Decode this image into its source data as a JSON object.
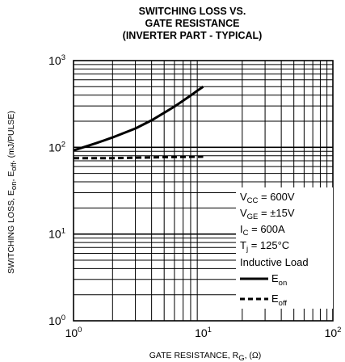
{
  "chart_data": {
    "type": "line",
    "title": [
      "SWITCHING LOSS VS.",
      "GATE RESISTANCE",
      "(INVERTER PART - TYPICAL)"
    ],
    "xlabel": {
      "main": "GATE RESISTANCE, R",
      "sub": "G",
      "tail": ", (Ω)"
    },
    "ylabel": {
      "p1": "SWITCHING LOSS, E",
      "s1": "on",
      "p2": ", E",
      "s2": "off",
      "p3": ", (mJ/PULSE)"
    },
    "x_scale": "log",
    "y_scale": "log",
    "xlim": [
      1,
      100
    ],
    "ylim": [
      1,
      1000
    ],
    "x_ticks": [
      {
        "base": "10",
        "exp": "0"
      },
      {
        "base": "10",
        "exp": "1"
      },
      {
        "base": "10",
        "exp": "2"
      }
    ],
    "y_ticks": [
      {
        "base": "10",
        "exp": "0"
      },
      {
        "base": "10",
        "exp": "1"
      },
      {
        "base": "10",
        "exp": "2"
      },
      {
        "base": "10",
        "exp": "3"
      }
    ],
    "grid": true,
    "series": [
      {
        "name": "E_on",
        "style": "solid",
        "x": [
          1,
          1.5,
          2,
          3,
          4,
          5,
          6,
          7,
          8,
          9,
          10
        ],
        "y": [
          92,
          112,
          130,
          165,
          205,
          250,
          295,
          345,
          395,
          450,
          500
        ]
      },
      {
        "name": "E_off",
        "style": "dashed",
        "x": [
          1,
          2,
          5,
          10
        ],
        "y": [
          75,
          75,
          77,
          78
        ]
      }
    ],
    "legend": {
      "position": "lower-right",
      "conditions": [
        {
          "main": "V",
          "sub": "CC",
          "rest": " = 600V"
        },
        {
          "main": "V",
          "sub": "GE",
          "rest": " = ±15V"
        },
        {
          "main": "I",
          "sub": "C",
          "rest": " = 600A"
        },
        {
          "main": "T",
          "sub": "j",
          "rest": " = 125°C"
        },
        {
          "main": "Inductive Load",
          "sub": "",
          "rest": ""
        }
      ],
      "entries": [
        {
          "main": "E",
          "sub": "on",
          "style": "solid"
        },
        {
          "main": "E",
          "sub": "off",
          "style": "dashed"
        }
      ]
    },
    "colors": {
      "line": "#000000",
      "grid": "#000000",
      "background": "#ffffff"
    }
  }
}
